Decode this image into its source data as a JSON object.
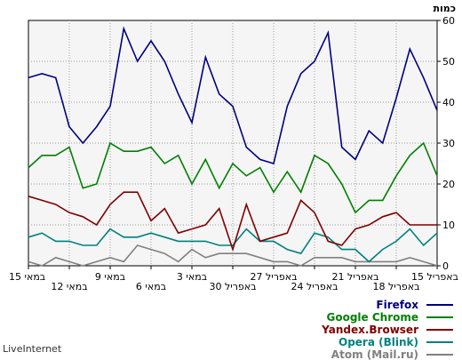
{
  "chart_data": {
    "type": "line",
    "ylabel": "כמות",
    "ylim": [
      0,
      60
    ],
    "yticks": [
      "0",
      "10",
      "20",
      "30",
      "40",
      "50",
      "60"
    ],
    "x_labels": [
      "15 במאי",
      "12 במאי",
      "9 במאי",
      "6 במאי",
      "3 במאי",
      "30 באפריל",
      "27 באפריל",
      "24 באפריל",
      "21 באפריל",
      "18 באפריל",
      "15 באפריל"
    ],
    "grid": true,
    "legend_position": "bottom-right",
    "series": [
      {
        "name": "Firefox",
        "color": "#000080",
        "values": [
          46,
          47,
          46,
          34,
          30,
          34,
          39,
          58,
          50,
          55,
          50,
          42,
          35,
          51,
          42,
          39,
          29,
          26,
          25,
          39,
          47,
          50,
          57,
          29,
          26,
          33,
          30,
          41,
          53,
          46,
          38
        ]
      },
      {
        "name": "Google Chrome",
        "color": "#008000",
        "values": [
          24,
          27,
          27,
          29,
          19,
          20,
          30,
          28,
          28,
          29,
          25,
          27,
          20,
          26,
          19,
          25,
          22,
          24,
          18,
          23,
          18,
          27,
          25,
          20,
          13,
          16,
          16,
          22,
          27,
          30,
          22
        ]
      },
      {
        "name": "Yandex.Browser",
        "color": "#800000",
        "values": [
          17,
          16,
          15,
          13,
          12,
          10,
          15,
          18,
          18,
          11,
          14,
          8,
          9,
          10,
          14,
          4,
          15,
          6,
          7,
          8,
          16,
          13,
          6,
          5,
          9,
          10,
          12,
          13,
          10,
          10,
          10
        ]
      },
      {
        "name": "Opera (Blink)",
        "color": "#008080",
        "values": [
          7,
          8,
          6,
          6,
          5,
          5,
          9,
          7,
          7,
          8,
          7,
          6,
          6,
          6,
          5,
          5,
          9,
          6,
          6,
          4,
          3,
          8,
          7,
          4,
          4,
          1,
          4,
          6,
          9,
          5,
          8
        ]
      },
      {
        "name": "Atom (Mail.ru)",
        "color": "#808080",
        "values": [
          1,
          0,
          2,
          1,
          0,
          1,
          2,
          1,
          5,
          4,
          3,
          1,
          4,
          2,
          3,
          3,
          3,
          2,
          1,
          1,
          0,
          2,
          2,
          2,
          1,
          1,
          1,
          1,
          2,
          1,
          0
        ]
      }
    ]
  },
  "footer": {
    "watermark": "LiveInternet"
  }
}
